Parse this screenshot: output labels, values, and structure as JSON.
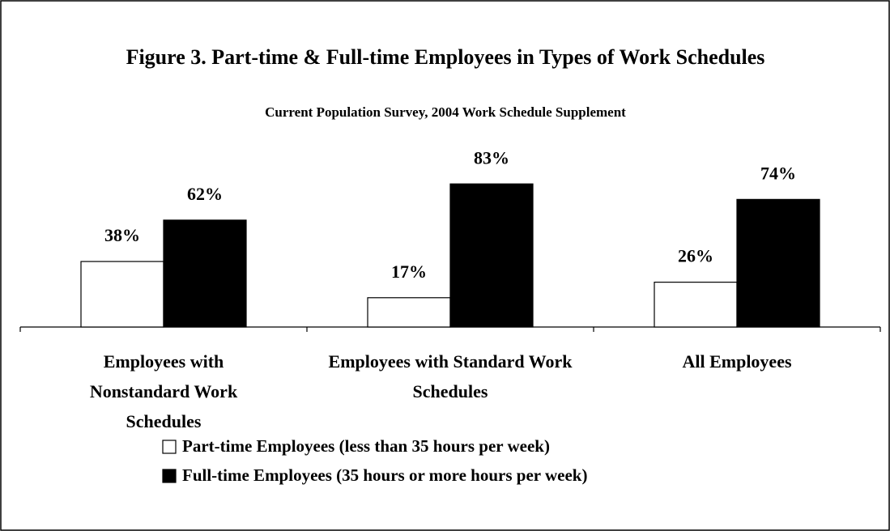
{
  "chart_data": {
    "type": "bar",
    "title": "Figure 3.  Part-time & Full-time Employees in Types of Work Schedules",
    "subtitle": "Current Population Survey, 2004 Work Schedule Supplement",
    "categories": [
      "Employees with Nonstandard Work Schedules",
      "Employees with Standard Work Schedules",
      "All Employees"
    ],
    "series": [
      {
        "name": "Part-time Employees (less than 35 hours per week)",
        "color": "#ffffff",
        "values": [
          38,
          17,
          26
        ],
        "value_labels": [
          "38%",
          "17%",
          "26%"
        ]
      },
      {
        "name": "Full-time Employees (35 hours or more hours per week)",
        "color": "#000000",
        "values": [
          62,
          83,
          74
        ],
        "value_labels": [
          "62%",
          "83%",
          "74%"
        ]
      }
    ]
  }
}
